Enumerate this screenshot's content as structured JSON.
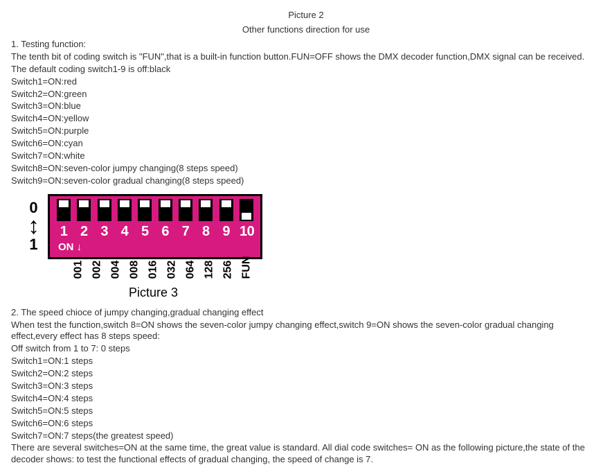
{
  "title": "Picture 2",
  "subtitle": "Other functions direction for use",
  "sec1": {
    "h": "1. Testing function:",
    "p1": "The tenth bit of coding switch is \"FUN\",that is a built-in function button.FUN=OFF shows the DMX decoder function,DMX signal can be received.",
    "p2": "The default coding switch1-9 is off:black",
    "sw": [
      "Switch1=ON:red",
      "Switch2=ON:green",
      "Switch3=ON:blue",
      "Switch4=ON:yellow",
      "Switch5=ON:purple",
      "Switch6=ON:cyan",
      "Switch7=ON:white",
      "Switch8=ON:seven-color jumpy changing(8 steps speed)",
      "Switch9=ON:seven-color gradual changing(8 steps speed)"
    ]
  },
  "dip": {
    "scale_top": "0",
    "scale_bottom": "1",
    "arrow": "↕",
    "nums": [
      "1",
      "2",
      "3",
      "4",
      "5",
      "6",
      "7",
      "8",
      "9",
      "10"
    ],
    "on_label": "ON ↓",
    "positions": [
      "up",
      "up",
      "up",
      "up",
      "up",
      "up",
      "up",
      "up",
      "up",
      "down"
    ],
    "values": [
      "001",
      "002",
      "004",
      "008",
      "016",
      "032",
      "064",
      "128",
      "256",
      "FUN"
    ],
    "colors": {
      "box_bg": "#d61a7f",
      "border": "#000000",
      "slot_bg": "#000000",
      "knob": "#ffffff",
      "text": "#ffffff"
    }
  },
  "pic3_caption": "Picture  3",
  "sec2": {
    "h": "2. The speed chioce of jumpy changing,gradual changing effect",
    "p1": "When test the function,switch 8=ON shows the seven-color jumpy changing effect,switch 9=ON shows the seven-color gradual changing effect,every effect has 8 steps speed:",
    "p2": "Off switch from 1 to 7: 0 steps",
    "sw": [
      "Switch1=ON:1 steps",
      "Switch2=ON:2 steps",
      "Switch3=ON:3 steps",
      "Switch4=ON:4 steps",
      "Switch5=ON:5 steps",
      "Switch6=ON:6 steps",
      "Switch7=ON:7 steps(the greatest speed)"
    ],
    "p3": "There are several switches=ON at the same time, the great value is standard. All dial code switches= ON as the following picture,the state of the decoder shows: to test the functional effects of gradual changing, the speed of change is 7."
  }
}
